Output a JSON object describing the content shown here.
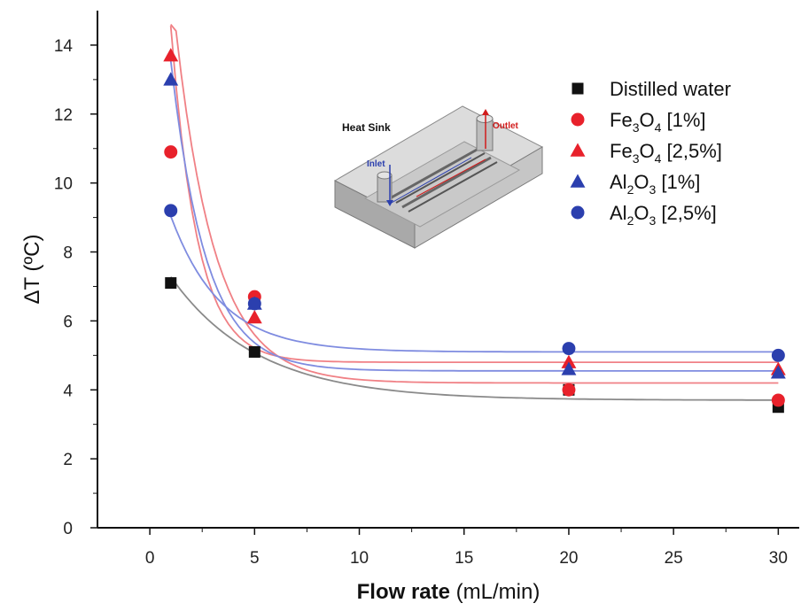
{
  "chart_data": {
    "type": "scatter",
    "x": [
      1,
      5,
      20,
      30
    ],
    "xlim": [
      -2.5,
      31
    ],
    "ylim": [
      0,
      15
    ],
    "xticks": [
      0,
      5,
      10,
      15,
      20,
      25,
      30
    ],
    "yticks": [
      0,
      2,
      4,
      6,
      8,
      10,
      12,
      14
    ],
    "xlabel": {
      "bold": "Flow rate",
      "rest": "(mL/min)"
    },
    "ylabel": "ΔT (ºC)",
    "grid": false,
    "legend": {
      "placement": "top-right"
    },
    "series": [
      {
        "name": "Distilled water",
        "marker": "square",
        "color": "#111111",
        "values": [
          7.1,
          5.1,
          4.0,
          3.5
        ],
        "fit": {
          "A": 3.7,
          "B": 4.55,
          "k": 0.24
        }
      },
      {
        "name": "Fe3O4 [1%]",
        "name_parts": [
          "Fe",
          "3",
          "O",
          "4",
          " [1%]"
        ],
        "marker": "circle",
        "color": "#e8212b",
        "values": [
          10.9,
          6.7,
          4.0,
          3.7
        ],
        "fit": {
          "A": 4.2,
          "B": 19.8,
          "k": 0.53
        }
      },
      {
        "name": "Fe3O4 [2,5%]",
        "name_parts": [
          "Fe",
          "3",
          "O",
          "4",
          " [2,5%]"
        ],
        "marker": "triangle",
        "color": "#e8212b",
        "values": [
          13.7,
          6.1,
          4.8,
          4.6
        ],
        "fit": {
          "A": 4.8,
          "B": 21.5,
          "k": 0.79
        }
      },
      {
        "name": "Al2O3 [1%]",
        "name_parts": [
          "Al",
          "2",
          "O",
          "3",
          " [1%]"
        ],
        "marker": "triangle",
        "color": "#2b3fae",
        "values": [
          13.0,
          6.5,
          4.6,
          4.5
        ],
        "fit": {
          "A": 4.55,
          "B": 16.4,
          "k": 0.6
        }
      },
      {
        "name": "Al2O3 [2,5%]",
        "name_parts": [
          "Al",
          "2",
          "O",
          "3",
          " [2,5%]"
        ],
        "marker": "circle",
        "color": "#2b3fae",
        "values": [
          9.2,
          6.5,
          5.2,
          5.0
        ],
        "fit": {
          "A": 5.1,
          "B": 6.0,
          "k": 0.42
        }
      }
    ],
    "inset": {
      "labels": {
        "heat_sink": "Heat Sink",
        "inlet": "Inlet",
        "outlet": "Outlet"
      },
      "colors": {
        "inlet": "#2b3fae",
        "outlet": "#d11b1b"
      }
    }
  }
}
